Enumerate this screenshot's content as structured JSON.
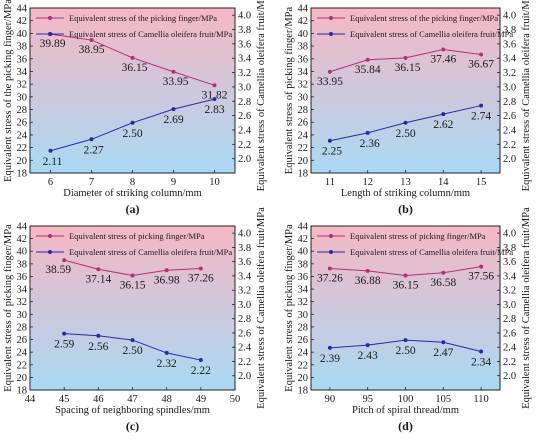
{
  "colors": {
    "pink_series": "#b0307a",
    "blue_series": "#2a2aa0",
    "bg_top": "#f6b7c4",
    "bg_bottom": "#a9d9f4"
  },
  "chart_data": [
    {
      "type": "line",
      "panel_label": "(a)",
      "xlabel": "Diameter of striking column/mm",
      "ylabel_left": "Equivalent stress of the picking finger/MPa",
      "ylabel_right": "Equivalent stress of Camellia oleifera fruit/MPa",
      "x": [
        6,
        7,
        8,
        9,
        10
      ],
      "xticks": [
        6,
        7,
        8,
        9,
        10
      ],
      "xlim": [
        5.5,
        10.5
      ],
      "ylim_left": [
        18,
        44
      ],
      "ylim_right": [
        1.8,
        4.1
      ],
      "yticks_left": [
        18,
        20,
        22,
        24,
        26,
        28,
        30,
        32,
        34,
        36,
        38,
        40,
        42,
        44
      ],
      "yticks_right": [
        2.0,
        2.2,
        2.4,
        2.6,
        2.8,
        3.0,
        3.2,
        3.4,
        3.6,
        3.8,
        4.0
      ],
      "legend_position": "top-left",
      "series": [
        {
          "name": "Equivalent stress of the picking finger/MPa",
          "axis": "left",
          "values": [
            39.89,
            38.95,
            36.15,
            33.95,
            31.82
          ],
          "labels": [
            "39.89",
            "38.95",
            "36.15",
            "33.95",
            "31.82"
          ]
        },
        {
          "name": "Equivalent stress of Camellia oleifera fruit/MPa",
          "axis": "right",
          "values": [
            2.11,
            2.27,
            2.5,
            2.69,
            2.83
          ],
          "labels": [
            "2.11",
            "2.27",
            "2.50",
            "2.69",
            "2.83"
          ]
        }
      ]
    },
    {
      "type": "line",
      "panel_label": "(b)",
      "xlabel": "Length of striking column/mm",
      "ylabel_left": "Equivalent stress of picking finger/MPa",
      "ylabel_right": "Equivalent stress of Camellia oleifera fruit/MPa",
      "x": [
        11,
        12,
        13,
        14,
        15
      ],
      "xticks": [
        11,
        12,
        13,
        14,
        15
      ],
      "xlim": [
        10.5,
        15.5
      ],
      "ylim_left": [
        18,
        44
      ],
      "ylim_right": [
        1.8,
        4.1
      ],
      "yticks_left": [
        18,
        20,
        22,
        24,
        26,
        28,
        30,
        32,
        34,
        36,
        38,
        40,
        42,
        44
      ],
      "yticks_right": [
        2.0,
        2.2,
        2.4,
        2.6,
        2.8,
        3.0,
        3.2,
        3.4,
        3.6,
        3.8,
        4.0
      ],
      "legend_position": "top",
      "series": [
        {
          "name": "Equivalent stress of the picking finger/MPa",
          "axis": "left",
          "values": [
            33.95,
            35.84,
            36.15,
            37.46,
            36.67
          ],
          "labels": [
            "33.95",
            "35.84",
            "36.15",
            "37.46",
            "36.67"
          ]
        },
        {
          "name": "Equivalent stress of Camellia oleifera fruit/MPa",
          "axis": "right",
          "values": [
            2.25,
            2.36,
            2.5,
            2.62,
            2.74
          ],
          "labels": [
            "2.25",
            "2.36",
            "2.50",
            "2.62",
            "2.74"
          ]
        }
      ]
    },
    {
      "type": "line",
      "panel_label": "(c)",
      "xlabel": "Spacing of neighboring spindles/mm",
      "ylabel_left": "Equivalent stress of picking finger/MPa",
      "ylabel_right": "Equivalent stress of Camellia oleifera fruit/MPa",
      "x": [
        45,
        46,
        47,
        48,
        49
      ],
      "xticks": [
        44,
        45,
        46,
        47,
        48,
        49,
        50
      ],
      "xlim": [
        44,
        50
      ],
      "ylim_left": [
        18,
        44
      ],
      "ylim_right": [
        1.8,
        4.1
      ],
      "yticks_left": [
        18,
        20,
        22,
        24,
        26,
        28,
        30,
        32,
        34,
        36,
        38,
        40,
        42,
        44
      ],
      "yticks_right": [
        2.0,
        2.2,
        2.4,
        2.6,
        2.8,
        3.0,
        3.2,
        3.4,
        3.6,
        3.8,
        4.0
      ],
      "legend_position": "top",
      "series": [
        {
          "name": "Equivalent stress of picking finger/MPa",
          "axis": "left",
          "values": [
            38.59,
            37.14,
            36.15,
            36.98,
            37.26
          ],
          "labels": [
            "38.59",
            "37.14",
            "36.15",
            "36.98",
            "37.26"
          ]
        },
        {
          "name": "Equivalent stress of Camellia oleifera fruit/MPa",
          "axis": "right",
          "values": [
            2.59,
            2.56,
            2.5,
            2.32,
            2.22
          ],
          "labels": [
            "2.59",
            "2.56",
            "2.50",
            "2.32",
            "2.22"
          ]
        }
      ]
    },
    {
      "type": "line",
      "panel_label": "(d)",
      "xlabel": "Pitch of spiral thread/mm",
      "ylabel_left": "Equivalent stress of picking finger/MPa",
      "ylabel_right": "Equivalent stress of Camellia oleifera fruit/MPa",
      "x": [
        90,
        95,
        100,
        105,
        110
      ],
      "xticks": [
        90,
        95,
        100,
        105,
        110
      ],
      "xlim": [
        87.5,
        112.5
      ],
      "ylim_left": [
        18,
        44
      ],
      "ylim_right": [
        1.8,
        4.1
      ],
      "yticks_left": [
        18,
        20,
        22,
        24,
        26,
        28,
        30,
        32,
        34,
        36,
        38,
        40,
        42,
        44
      ],
      "yticks_right": [
        2.0,
        2.2,
        2.4,
        2.6,
        2.8,
        3.0,
        3.2,
        3.4,
        3.6,
        3.8,
        4.0
      ],
      "legend_position": "top",
      "series": [
        {
          "name": "Equivalent stress of picking finger/MPa",
          "axis": "left",
          "values": [
            37.26,
            36.88,
            36.15,
            36.58,
            37.56
          ],
          "labels": [
            "37.26",
            "36.88",
            "36.15",
            "36.58",
            "37.56"
          ]
        },
        {
          "name": "Equivalent stress of Camellia oleifera fruit/MPa",
          "axis": "right",
          "values": [
            2.39,
            2.43,
            2.5,
            2.47,
            2.34
          ],
          "labels": [
            "2.39",
            "2.43",
            "2.50",
            "2.47",
            "2.34"
          ]
        }
      ]
    }
  ]
}
